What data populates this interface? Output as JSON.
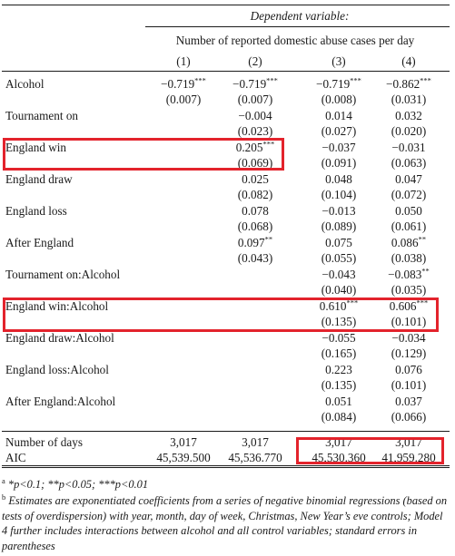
{
  "header": {
    "dependent_variable": "Dependent variable:",
    "outcome": "Number of reported domestic abuse cases per day",
    "columns": [
      "(1)",
      "(2)",
      "(3)",
      "(4)"
    ]
  },
  "rows": [
    {
      "label": "Alcohol",
      "cells": [
        {
          "coef": "−0.719",
          "stars": "***",
          "se": "(0.007)"
        },
        {
          "coef": "−0.719",
          "stars": "***",
          "se": "(0.007)"
        },
        {
          "coef": "−0.719",
          "stars": "***",
          "se": "(0.008)"
        },
        {
          "coef": "−0.862",
          "stars": "***",
          "se": "(0.031)"
        }
      ]
    },
    {
      "label": "Tournament on",
      "cells": [
        null,
        {
          "coef": "−0.004",
          "stars": "",
          "se": "(0.023)"
        },
        {
          "coef": "0.014",
          "stars": "",
          "se": "(0.027)"
        },
        {
          "coef": "0.032",
          "stars": "",
          "se": "(0.020)"
        }
      ]
    },
    {
      "label": "England win",
      "cells": [
        null,
        {
          "coef": "0.205",
          "stars": "***",
          "se": "(0.069)"
        },
        {
          "coef": "−0.037",
          "stars": "",
          "se": "(0.091)"
        },
        {
          "coef": "−0.031",
          "stars": "",
          "se": "(0.063)"
        }
      ]
    },
    {
      "label": "England draw",
      "cells": [
        null,
        {
          "coef": "0.025",
          "stars": "",
          "se": "(0.082)"
        },
        {
          "coef": "0.048",
          "stars": "",
          "se": "(0.104)"
        },
        {
          "coef": "0.047",
          "stars": "",
          "se": "(0.072)"
        }
      ]
    },
    {
      "label": "England loss",
      "cells": [
        null,
        {
          "coef": "0.078",
          "stars": "",
          "se": "(0.068)"
        },
        {
          "coef": "−0.013",
          "stars": "",
          "se": "(0.089)"
        },
        {
          "coef": "0.050",
          "stars": "",
          "se": "(0.061)"
        }
      ]
    },
    {
      "label": "After England",
      "cells": [
        null,
        {
          "coef": "0.097",
          "stars": "**",
          "se": "(0.043)"
        },
        {
          "coef": "0.075",
          "stars": "",
          "se": "(0.055)"
        },
        {
          "coef": "0.086",
          "stars": "**",
          "se": "(0.038)"
        }
      ]
    },
    {
      "label": "Tournament on:Alcohol",
      "cells": [
        null,
        null,
        {
          "coef": "−0.043",
          "stars": "",
          "se": "(0.040)"
        },
        {
          "coef": "−0.083",
          "stars": "**",
          "se": "(0.035)"
        }
      ]
    },
    {
      "label": "England win:Alcohol",
      "cells": [
        null,
        null,
        {
          "coef": "0.610",
          "stars": "***",
          "se": "(0.135)"
        },
        {
          "coef": "0.606",
          "stars": "***",
          "se": "(0.101)"
        }
      ]
    },
    {
      "label": "England draw:Alcohol",
      "cells": [
        null,
        null,
        {
          "coef": "−0.055",
          "stars": "",
          "se": "(0.165)"
        },
        {
          "coef": "−0.034",
          "stars": "",
          "se": "(0.129)"
        }
      ]
    },
    {
      "label": "England loss:Alcohol",
      "cells": [
        null,
        null,
        {
          "coef": "0.223",
          "stars": "",
          "se": "(0.135)"
        },
        {
          "coef": "0.076",
          "stars": "",
          "se": "(0.101)"
        }
      ]
    },
    {
      "label": "After England:Alcohol",
      "cells": [
        null,
        null,
        {
          "coef": "0.051",
          "stars": "",
          "se": "(0.084)"
        },
        {
          "coef": "0.037",
          "stars": "",
          "se": "(0.066)"
        }
      ]
    }
  ],
  "stats": [
    {
      "label": "Number of days",
      "values": [
        "3,017",
        "3,017",
        "3,017",
        "3,017"
      ]
    },
    {
      "label": "AIC",
      "values": [
        "45,539.500",
        "45,536.770",
        "45,530.360",
        "41,959.280"
      ]
    }
  ],
  "notes": {
    "a_marker": "a",
    "a_text": "*p<0.1; **p<0.05; ***p<0.01",
    "b_marker": "b",
    "b_text": "Estimates are exponentiated coefficients from a series of negative binomial regressions (based on tests of overdispersion) with year, month, day of week, Christmas, New Year’s eve controls; Model 4 further includes interactions between alcohol and all control variables; standard errors in parentheses"
  },
  "highlight_color": "#e3232c"
}
